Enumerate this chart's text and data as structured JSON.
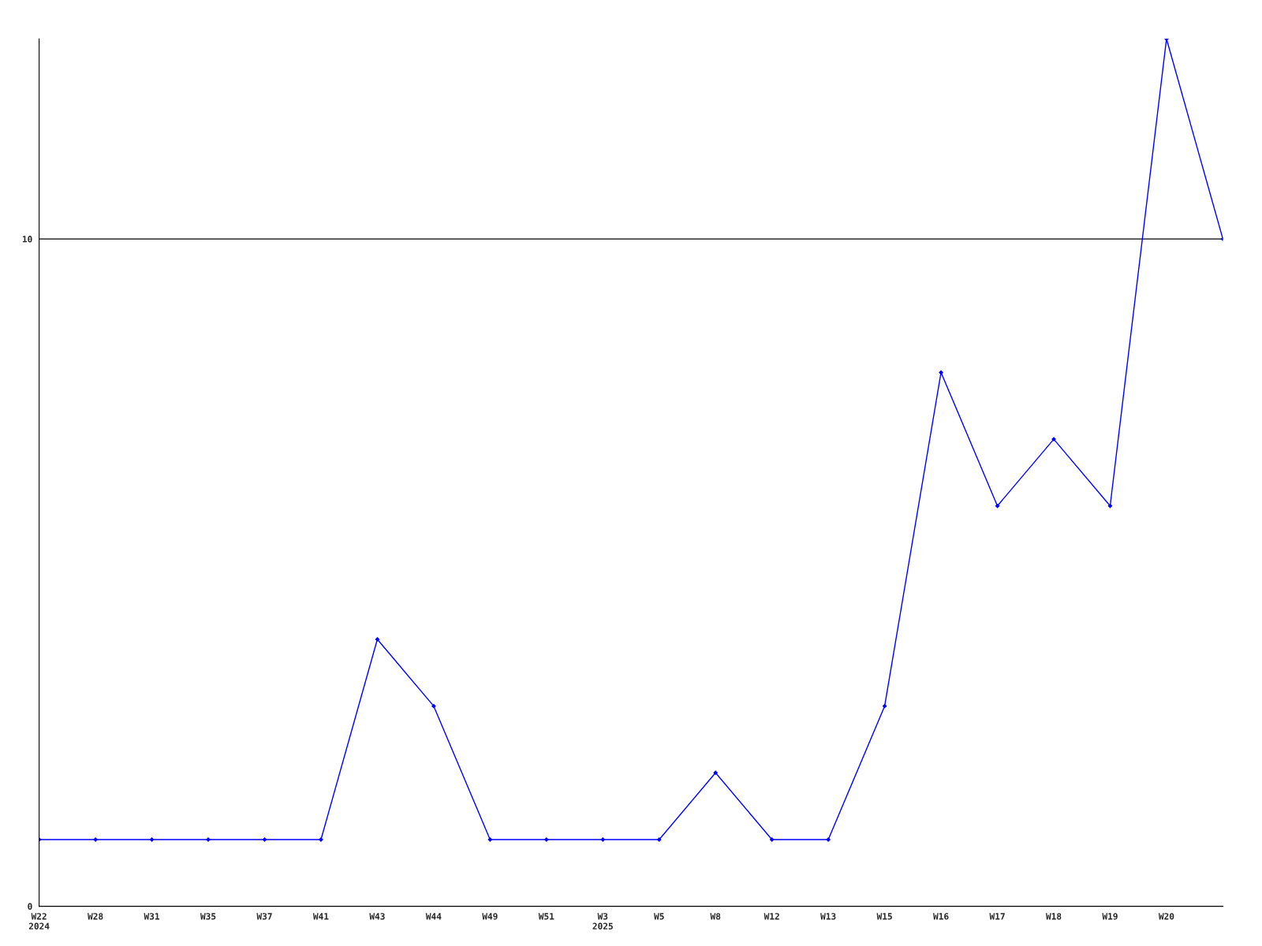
{
  "chart_data": {
    "type": "line",
    "categories": [
      "W22\n2024",
      "W28",
      "W31",
      "W35",
      "W37",
      "W41",
      "W43",
      "W44",
      "W49",
      "W51",
      "W3\n2025",
      "W5",
      "W8",
      "W12",
      "W13",
      "W15",
      "W16",
      "W17",
      "W18",
      "W19",
      "W20",
      null
    ],
    "series": [
      {
        "color": "#0000ff",
        "values": [
          1,
          1,
          1,
          1,
          1,
          1,
          4,
          3,
          1,
          1,
          1,
          1,
          2,
          1,
          1,
          3,
          8,
          6,
          7,
          6,
          13,
          10
        ]
      }
    ],
    "ylim": [
      0,
      13
    ],
    "yticks": [
      0,
      10
    ],
    "grid": "y",
    "marker": "diamond",
    "line_style": "solid"
  }
}
